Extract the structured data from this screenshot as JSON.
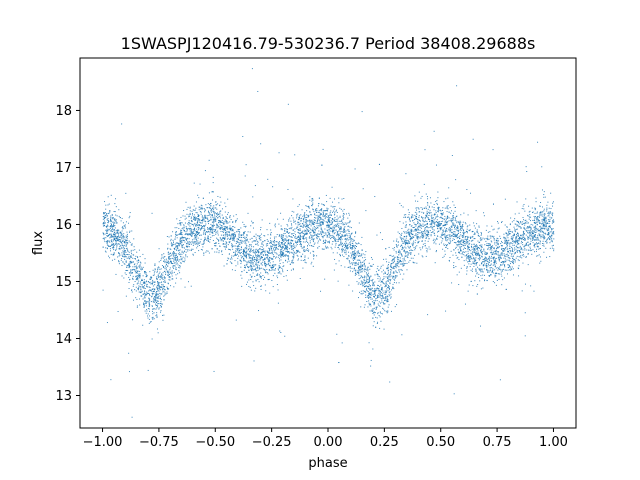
{
  "chart_data": {
    "type": "scatter",
    "title": "1SWASPJ120416.79-530236.7 Period 38408.29688s",
    "xlabel": "phase",
    "ylabel": "flux",
    "xlim": [
      -1.1,
      1.1
    ],
    "ylim": [
      12.43,
      18.92
    ],
    "xticks": [
      -1.0,
      -0.75,
      -0.5,
      -0.25,
      0.0,
      0.25,
      0.5,
      0.75,
      1.0
    ],
    "xtick_labels": [
      "−1.00",
      "−0.75",
      "−0.50",
      "−0.25",
      "0.00",
      "0.25",
      "0.50",
      "0.75",
      "1.00"
    ],
    "yticks": [
      13,
      14,
      15,
      16,
      17,
      18
    ],
    "ytick_labels": [
      "13",
      "14",
      "15",
      "16",
      "17",
      "18"
    ],
    "grid": false,
    "legend": "none",
    "marker_color": "#1f77b4",
    "series": [
      {
        "profile_phase": [
          0.0,
          0.05,
          0.1,
          0.15,
          0.2,
          0.25,
          0.3,
          0.35,
          0.4,
          0.45,
          0.5,
          0.55,
          0.6,
          0.65,
          0.7,
          0.75,
          0.8,
          0.85,
          0.9,
          0.95,
          1.0
        ],
        "profile_flux": [
          15.95,
          15.85,
          15.6,
          15.15,
          14.7,
          14.9,
          15.35,
          15.75,
          15.95,
          16.0,
          16.0,
          15.85,
          15.65,
          15.5,
          15.4,
          15.45,
          15.6,
          15.75,
          15.9,
          16.0,
          15.95
        ],
        "profile_spread": [
          0.45,
          0.45,
          0.45,
          0.45,
          0.5,
          0.45,
          0.45,
          0.45,
          0.45,
          0.45,
          0.45,
          0.45,
          0.45,
          0.45,
          0.45,
          0.45,
          0.45,
          0.45,
          0.45,
          0.45,
          0.45
        ]
      }
    ]
  }
}
